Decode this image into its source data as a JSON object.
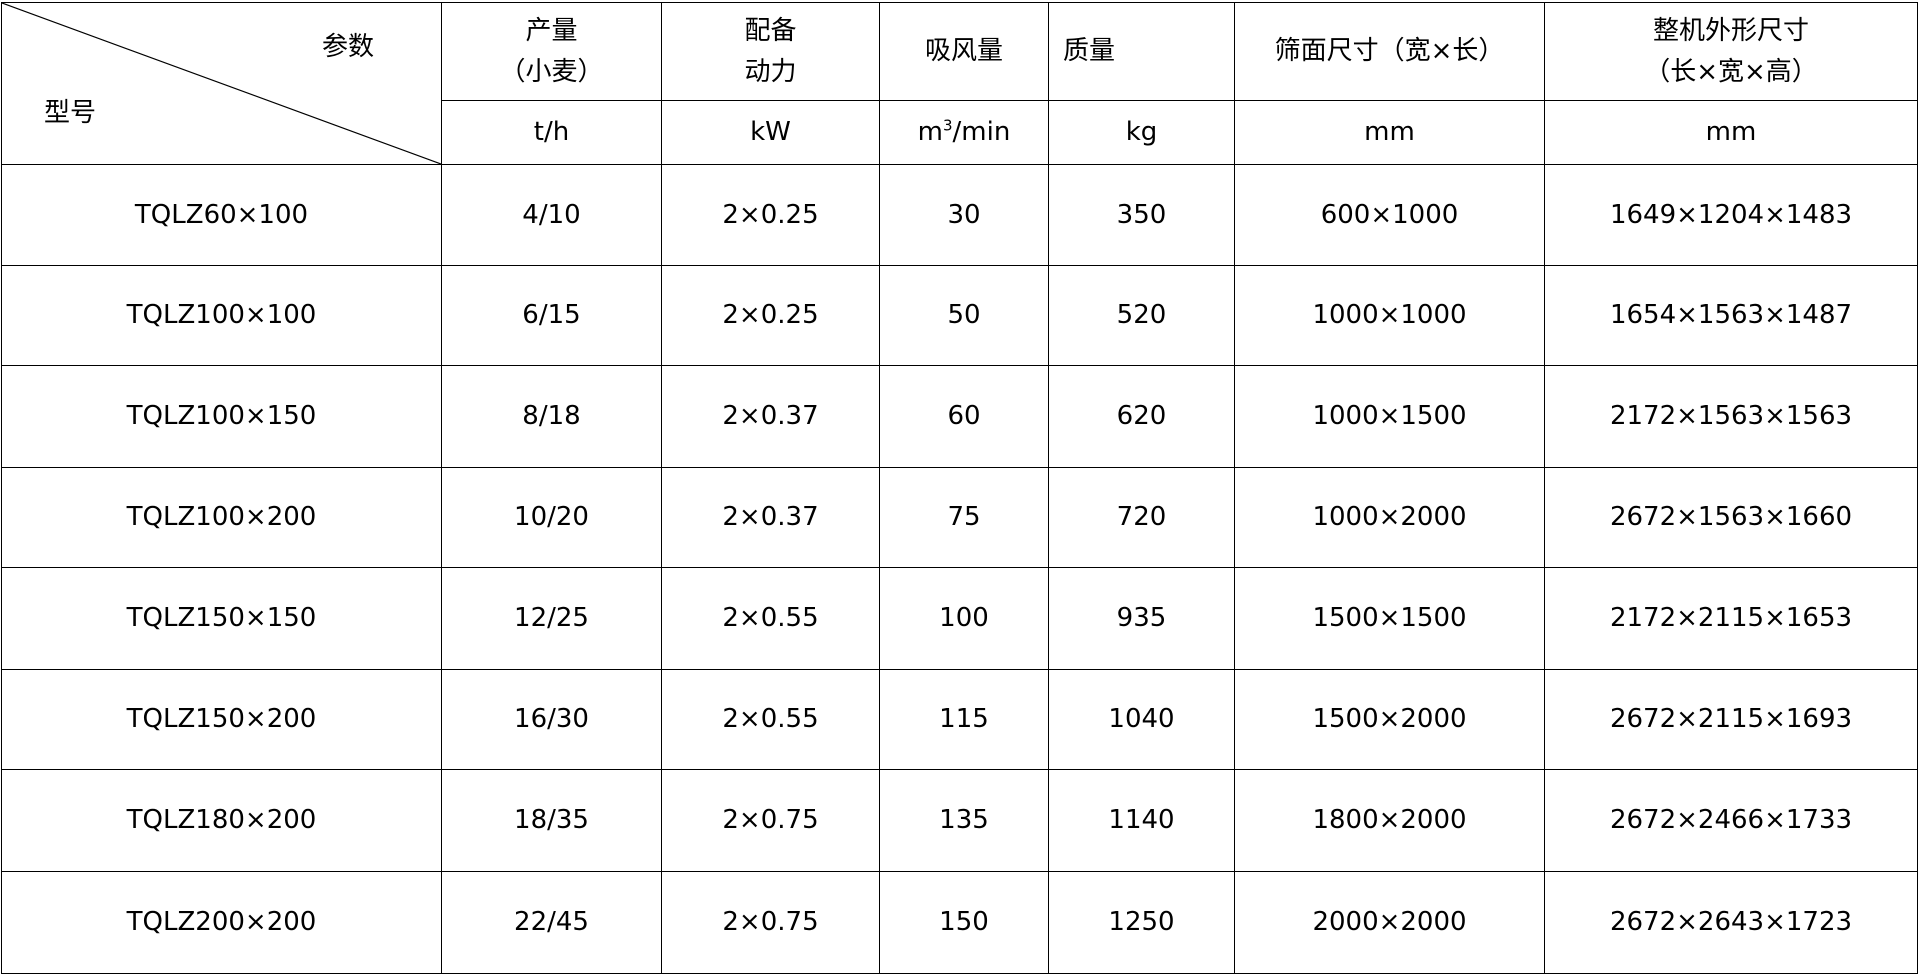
{
  "header": {
    "corner_top": "参数",
    "corner_bottom": "型号",
    "columns": [
      {
        "line1": "产量",
        "line2": "（小麦）",
        "unit": "t/h"
      },
      {
        "line1": "配备",
        "line2": "动力",
        "unit": "kW"
      },
      {
        "line1": "吸风量",
        "line2": "",
        "unit_base": "m",
        "unit_sup": "3",
        "unit_rest": "/min"
      },
      {
        "line1": "质量",
        "line2": "",
        "unit": "kg"
      },
      {
        "line1": "筛面尺寸（宽×长）",
        "line2": "",
        "unit": "mm"
      },
      {
        "line1": "整机外形尺寸",
        "line2": "（长×宽×高）",
        "unit": "mm"
      }
    ]
  },
  "rows": [
    [
      "TQLZ60×100",
      "4/10",
      "2×0.25",
      "30",
      "350",
      "600×1000",
      "1649×1204×1483"
    ],
    [
      "TQLZ100×100",
      "6/15",
      "2×0.25",
      "50",
      "520",
      "1000×1000",
      "1654×1563×1487"
    ],
    [
      "TQLZ100×150",
      "8/18",
      "2×0.37",
      "60",
      "620",
      "1000×1500",
      "2172×1563×1563"
    ],
    [
      "TQLZ100×200",
      "10/20",
      "2×0.37",
      "75",
      "720",
      "1000×2000",
      "2672×1563×1660"
    ],
    [
      "TQLZ150×150",
      "12/25",
      "2×0.55",
      "100",
      "935",
      "1500×1500",
      "2172×2115×1653"
    ],
    [
      "TQLZ150×200",
      "16/30",
      "2×0.55",
      "115",
      "1040",
      "1500×2000",
      "2672×2115×1693"
    ],
    [
      "TQLZ180×200",
      "18/35",
      "2×0.75",
      "135",
      "1140",
      "1800×2000",
      "2672×2466×1733"
    ],
    [
      "TQLZ200×200",
      "22/45",
      "2×0.75",
      "150",
      "1250",
      "2000×2000",
      "2672×2643×1723"
    ]
  ]
}
